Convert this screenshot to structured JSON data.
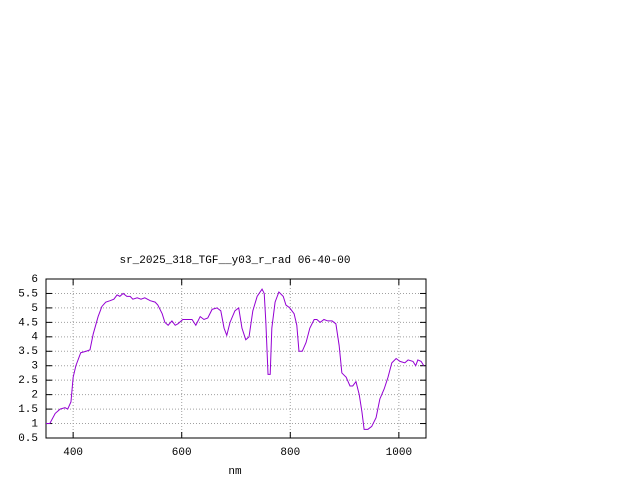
{
  "chart_data": {
    "type": "line",
    "title": "sr_2025_318_TGF__y03_r_rad 06-40-00",
    "x_label": "nm",
    "x": [
      350,
      357,
      367,
      376,
      385,
      390,
      396,
      400,
      405,
      414,
      424,
      431,
      437,
      446,
      453,
      460,
      468,
      475,
      481,
      486,
      492,
      499,
      505,
      510,
      518,
      525,
      532,
      542,
      551,
      556,
      564,
      569,
      575,
      582,
      588,
      593,
      602,
      612,
      619,
      626,
      634,
      641,
      648,
      656,
      665,
      672,
      678,
      683,
      689,
      698,
      705,
      711,
      718,
      724,
      731,
      739,
      748,
      752,
      755,
      759,
      763,
      766,
      772,
      779,
      787,
      792,
      799,
      807,
      812,
      816,
      822,
      829,
      836,
      844,
      849,
      855,
      862,
      869,
      877,
      884,
      890,
      895,
      903,
      910,
      915,
      921,
      927,
      932,
      936,
      943,
      950,
      958,
      965,
      973,
      980,
      987,
      995,
      1002,
      1011,
      1017,
      1026,
      1031,
      1035,
      1041,
      1046
    ],
    "series": [
      {
        "color": "#9400d3",
        "values": [
          1.0,
          1.0,
          1.35,
          1.5,
          1.55,
          1.5,
          1.75,
          2.6,
          3.0,
          3.45,
          3.5,
          3.55,
          4.1,
          4.7,
          5.05,
          5.2,
          5.25,
          5.3,
          5.45,
          5.4,
          5.5,
          5.4,
          5.4,
          5.3,
          5.35,
          5.3,
          5.35,
          5.25,
          5.2,
          5.1,
          4.8,
          4.5,
          4.4,
          4.55,
          4.4,
          4.45,
          4.6,
          4.6,
          4.6,
          4.4,
          4.7,
          4.6,
          4.65,
          4.95,
          5.0,
          4.9,
          4.3,
          4.05,
          4.5,
          4.9,
          5.0,
          4.3,
          3.9,
          4.0,
          4.9,
          5.4,
          5.65,
          5.5,
          4.5,
          2.7,
          2.7,
          4.3,
          5.2,
          5.55,
          5.4,
          5.1,
          5.0,
          4.8,
          4.4,
          3.5,
          3.5,
          3.8,
          4.3,
          4.6,
          4.6,
          4.5,
          4.6,
          4.55,
          4.55,
          4.45,
          3.7,
          2.75,
          2.6,
          2.3,
          2.3,
          2.45,
          2.0,
          1.4,
          0.8,
          0.8,
          0.9,
          1.2,
          1.85,
          2.2,
          2.6,
          3.1,
          3.25,
          3.15,
          3.1,
          3.2,
          3.15,
          3.0,
          3.2,
          3.15,
          3.0
        ]
      }
    ],
    "xlim": [
      350,
      1050
    ],
    "xticks": [
      400,
      600,
      800,
      1000
    ],
    "ylim": [
      0.5,
      6
    ],
    "yticks": [
      0.5,
      1,
      1.5,
      2,
      2.5,
      3,
      3.5,
      4,
      4.5,
      5,
      5.5,
      6
    ],
    "grid": true
  }
}
